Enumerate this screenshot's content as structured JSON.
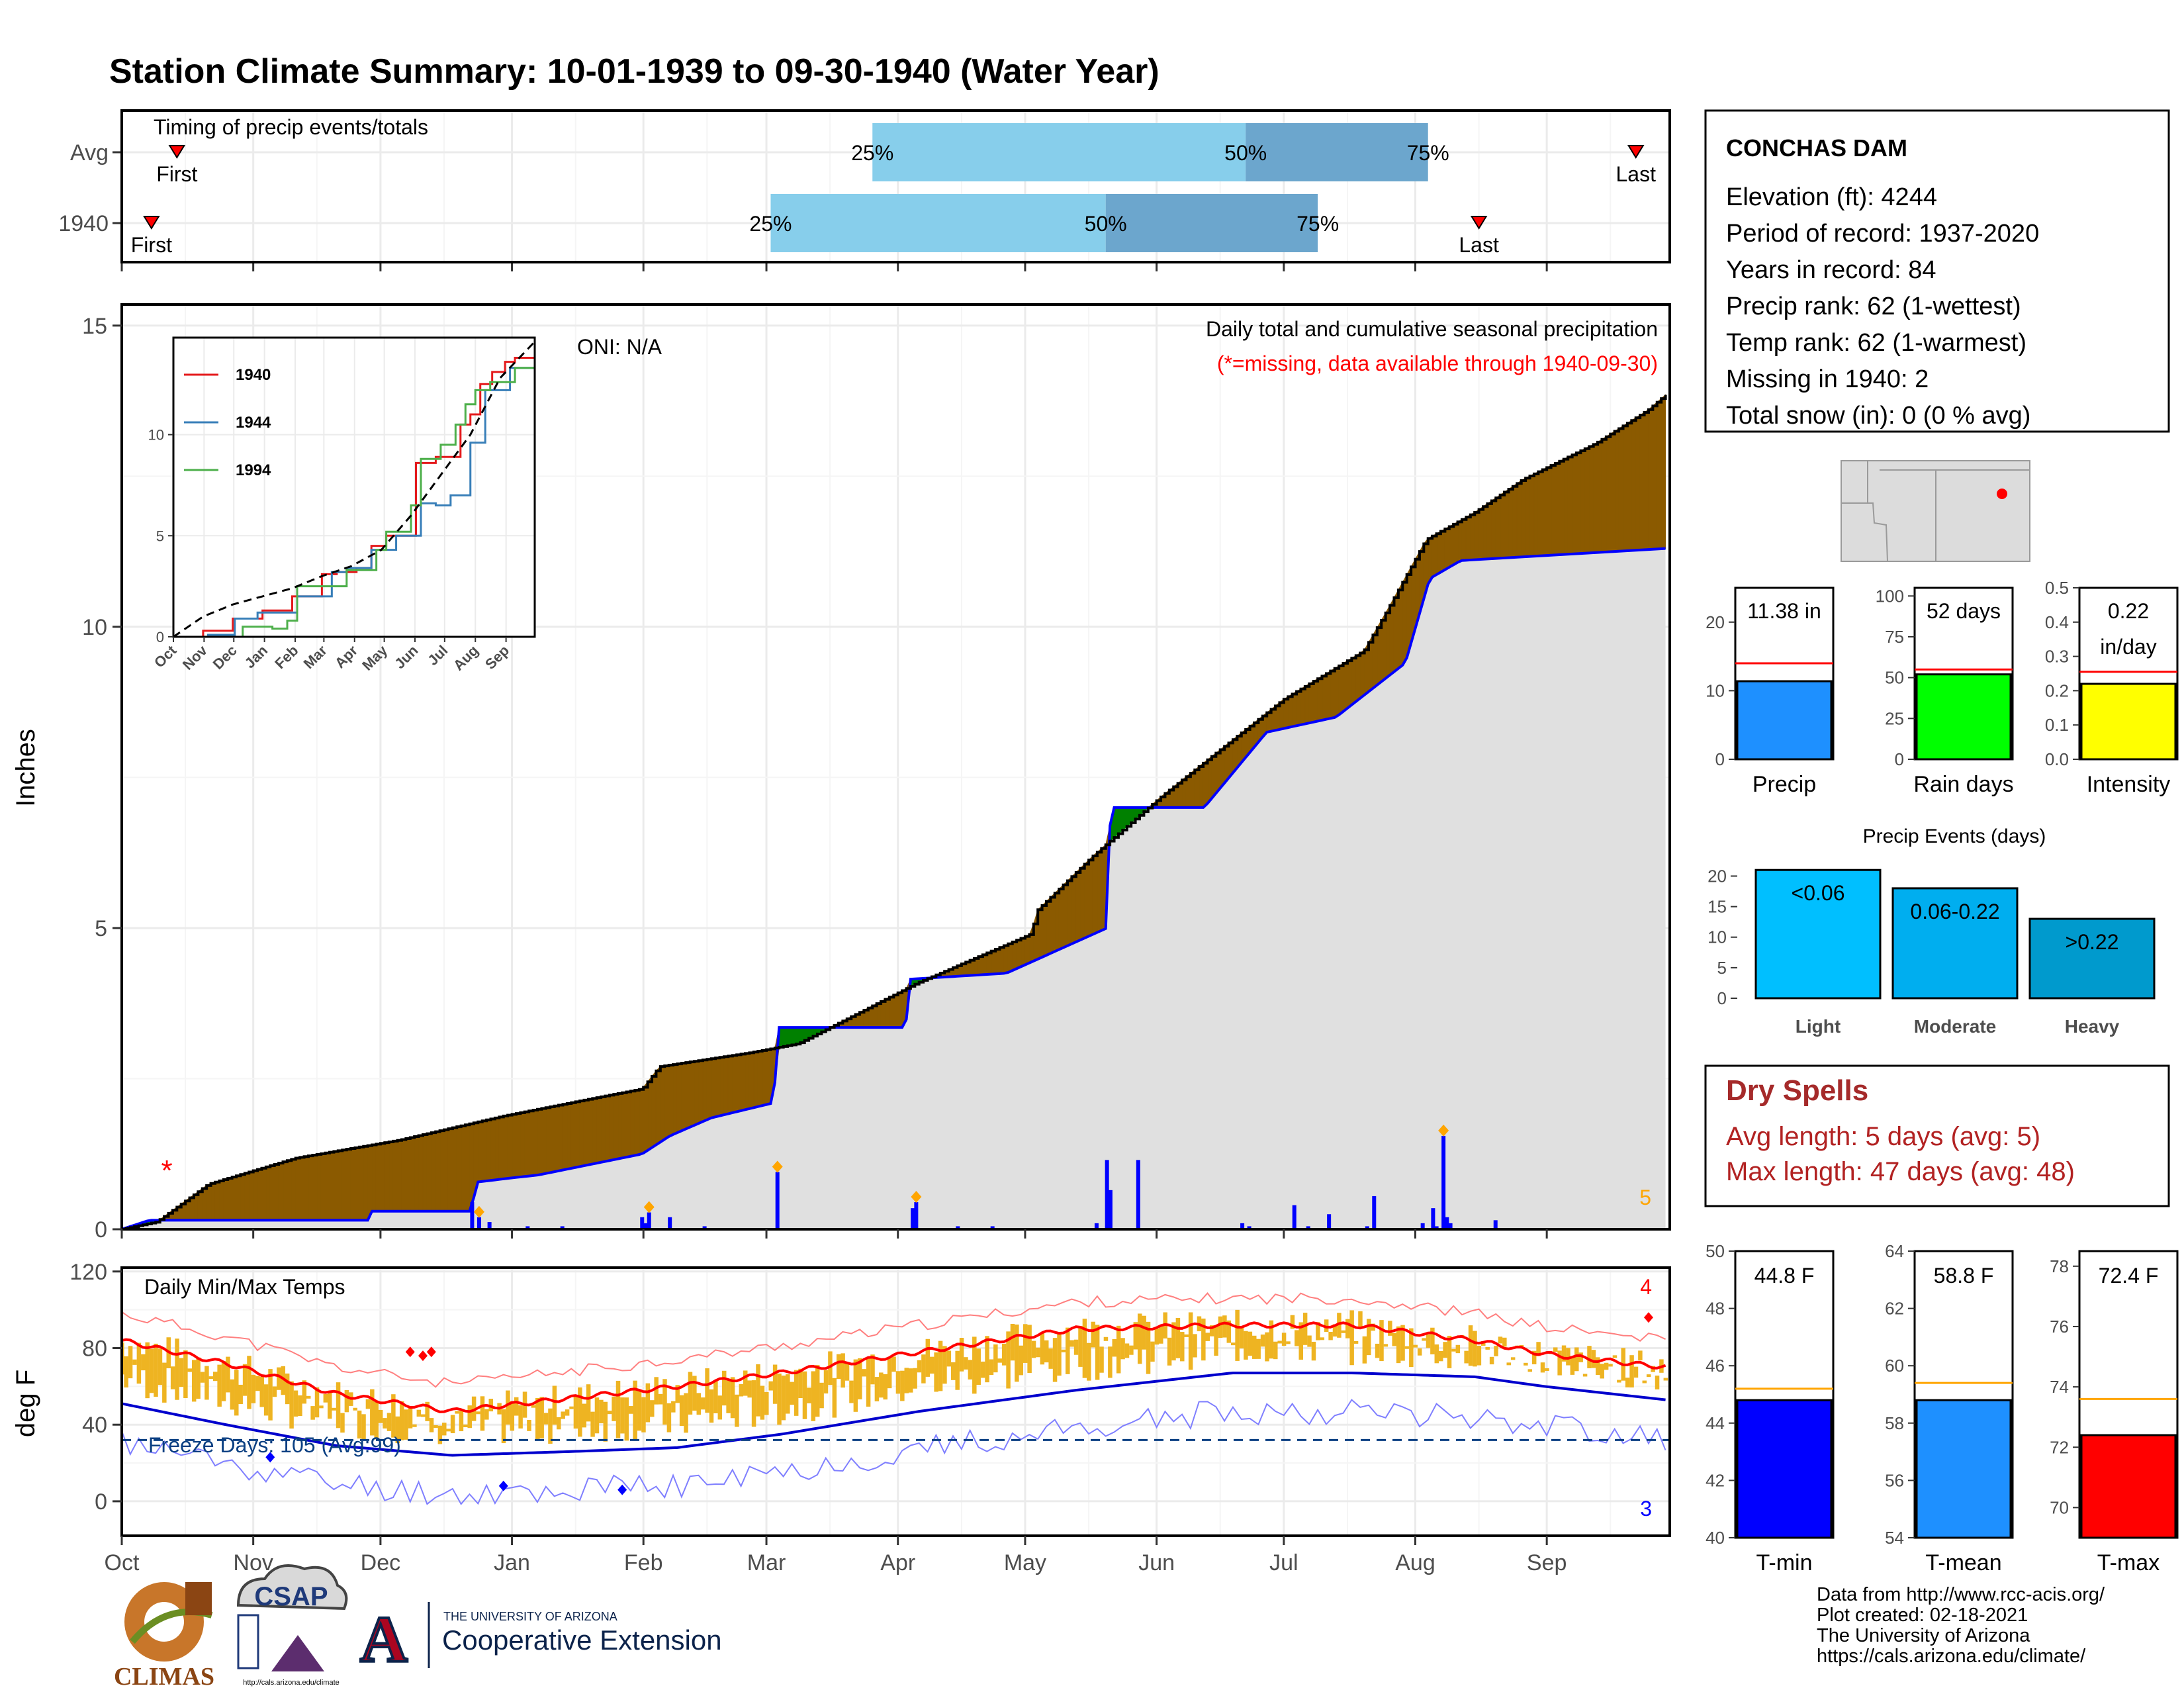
{
  "title": "Station Climate Summary: 10-01-1939 to 09-30-1940 (Water Year)",
  "colors": {
    "title": "#8B2500",
    "brown": "#8B5A00",
    "green": "#008000",
    "gray_fill": "#E0E0E0",
    "blue_line": "#0000FF",
    "bar_light": "#87CEEB",
    "bar_dark": "#6CA6CD",
    "gold": "#EEB422",
    "red": "#FF0000",
    "navy": "#0A3F82"
  },
  "timing": {
    "title": "Timing of precip events/totals",
    "rows": [
      {
        "label": "Avg",
        "first_label": "First",
        "last_label": "Last",
        "first_doy": 13,
        "last_doy": 357,
        "p25_doy": 177,
        "p50_doy": 265,
        "p75_doy": 308,
        "p25": "25%",
        "p50": "50%",
        "p75": "75%"
      },
      {
        "label": "1940",
        "first_label": "First",
        "last_label": "Last",
        "first_doy": 7,
        "last_doy": 320,
        "p25_doy": 153,
        "p50_doy": 232,
        "p75_doy": 282,
        "p25": "25%",
        "p50": "50%",
        "p75": "75%"
      }
    ]
  },
  "precip_panel": {
    "y_label": "Inches",
    "y_ticks": [
      "0",
      "5",
      "10",
      "15"
    ],
    "annotation": "Daily total and cumulative seasonal precipitation",
    "missing_note": "(*=missing, data available through 1940-09-30)",
    "oni": "ONI: N/A",
    "corner_count": "5"
  },
  "inset": {
    "y_ticks": [
      "0",
      "5",
      "10"
    ],
    "x_ticks": [
      "Oct",
      "Nov",
      "Dec",
      "Jan",
      "Feb",
      "Mar",
      "Apr",
      "May",
      "Jun",
      "Jul",
      "Aug",
      "Sep"
    ],
    "legend": [
      {
        "name": "1940",
        "color": "#E41A1C"
      },
      {
        "name": "1944",
        "color": "#377EB8"
      },
      {
        "name": "1994",
        "color": "#4DAF4A"
      }
    ]
  },
  "temp_panel": {
    "y_label": "deg F",
    "title": "Daily Min/Max Temps",
    "y_ticks": [
      "0",
      "40",
      "80",
      "120"
    ],
    "freeze_label": "Freeze Days: 105 (Avg:99)",
    "corner_hi": "4",
    "corner_lo": "3"
  },
  "months": [
    "Oct",
    "Nov",
    "Dec",
    "Jan",
    "Feb",
    "Mar",
    "Apr",
    "May",
    "Jun",
    "Jul",
    "Aug",
    "Sep"
  ],
  "station": {
    "name": "CONCHAS DAM",
    "lines": [
      "Elevation (ft): 4244",
      "Period of record: 1937-2020",
      "Years in record: 84",
      "Precip rank: 62 (1-wettest)",
      "Temp rank: 62 (1-warmest)",
      "Missing in 1940: 2",
      "Total snow (in): 0 (0 % avg)"
    ]
  },
  "mini_bars": [
    {
      "label": "Precip",
      "value_text": "11.38 in",
      "value": 11.38,
      "avg": 14.0,
      "ymax": 25,
      "ticks": [
        "0",
        "10",
        "20"
      ],
      "tick_vals": [
        0,
        10,
        20
      ],
      "color": "#1E90FF"
    },
    {
      "label": "Rain days",
      "value_text": "52 days",
      "value": 52,
      "avg": 55,
      "ymax": 105,
      "ticks": [
        "0",
        "25",
        "50",
        "75",
        "100"
      ],
      "tick_vals": [
        0,
        25,
        50,
        75,
        100
      ],
      "color": "#00FF00"
    },
    {
      "label": "Intensity",
      "value_text": "0.22",
      "value_text2": "in/day",
      "value": 0.22,
      "avg": 0.255,
      "ymax": 0.5,
      "ticks": [
        "0.0",
        "0.1",
        "0.2",
        "0.3",
        "0.4",
        "0.5"
      ],
      "tick_vals": [
        0,
        0.1,
        0.2,
        0.3,
        0.4,
        0.5
      ],
      "color": "#FFFF00"
    }
  ],
  "events": {
    "title": "Precip Events (days)",
    "ticks": [
      "0",
      "5",
      "10",
      "15",
      "20"
    ],
    "bars": [
      {
        "label": "Light",
        "text": "<0.06",
        "value": 21,
        "color": "#00BFFF"
      },
      {
        "label": "Moderate",
        "text": "0.06-0.22",
        "value": 18,
        "color": "#00AEEF"
      },
      {
        "label": "Heavy",
        "text": ">0.22",
        "value": 13,
        "color": "#009ACD"
      }
    ]
  },
  "dry_spells": {
    "title": "Dry Spells",
    "avg": "Avg length: 5 days (avg: 5)",
    "max": "Max length: 47 days (avg: 48)"
  },
  "temp_bars": [
    {
      "label": "T-min",
      "value_text": "44.8 F",
      "value": 44.8,
      "avg": 45.2,
      "ymin": 40,
      "ymax": 50,
      "ticks": [
        "40",
        "42",
        "44",
        "46",
        "48",
        "50"
      ],
      "tick_vals": [
        40,
        42,
        44,
        46,
        48,
        50
      ],
      "color": "#0000FF"
    },
    {
      "label": "T-mean",
      "value_text": "58.8 F",
      "value": 58.8,
      "avg": 59.4,
      "ymin": 54,
      "ymax": 64,
      "ticks": [
        "54",
        "56",
        "58",
        "60",
        "62",
        "64"
      ],
      "tick_vals": [
        54,
        56,
        58,
        60,
        62,
        64
      ],
      "color": "#1E90FF"
    },
    {
      "label": "T-max",
      "value_text": "72.4 F",
      "value": 72.4,
      "avg": 73.6,
      "ymin": 69,
      "ymax": 78.5,
      "ticks": [
        "70",
        "72",
        "74",
        "76",
        "78"
      ],
      "tick_vals": [
        70,
        72,
        74,
        76,
        78
      ],
      "color": "#FF0000"
    }
  ],
  "footer": {
    "lines": [
      "Data from http://www.rcc-acis.org/",
      "Plot created: 02-18-2021",
      "The University of Arizona",
      "https://cals.arizona.edu/climate/"
    ],
    "climas": "CLIMAS",
    "csap": "CSAP",
    "csap_url": "http://cals.arizona.edu/climate",
    "ua_small": "THE UNIVERSITY OF ARIZONA",
    "ua_big": "Cooperative Extension"
  },
  "chart_data": {
    "type": "area",
    "series": [
      {
        "name": "1940",
        "points": [
          [
            0,
            0
          ],
          [
            10,
            0.12
          ],
          [
            25,
            0.75
          ],
          [
            50,
            1.18
          ],
          [
            80,
            1.48
          ],
          [
            110,
            1.88
          ],
          [
            140,
            2.22
          ],
          [
            150,
            2.33
          ],
          [
            155,
            2.7
          ],
          [
            181,
            2.93
          ],
          [
            195,
            3.08
          ],
          [
            229,
            4.08
          ],
          [
            262,
            4.9
          ],
          [
            264,
            5.3
          ],
          [
            280,
            6.2
          ],
          [
            300,
            7.2
          ],
          [
            335,
            8.8
          ],
          [
            358,
            9.6
          ],
          [
            365,
            10.3
          ],
          [
            376,
            11.45
          ],
          [
            390,
            11.9
          ],
          [
            404,
            12.45
          ],
          [
            425,
            13.05
          ],
          [
            440,
            13.6
          ],
          [
            445,
            13.85
          ]
        ]
      },
      {
        "name": "Avg",
        "points": [
          [
            0,
            0
          ],
          [
            8,
            0.15
          ],
          [
            71,
            0.15
          ],
          [
            72,
            0.3
          ],
          [
            101,
            0.3
          ],
          [
            102,
            0.78
          ],
          [
            112,
            0.85
          ],
          [
            120,
            0.9
          ],
          [
            150,
            1.25
          ],
          [
            158,
            1.55
          ],
          [
            170,
            1.85
          ],
          [
            188,
            2.1
          ],
          [
            189,
            3.35
          ],
          [
            226,
            3.35
          ],
          [
            227,
            4.15
          ],
          [
            255,
            4.25
          ],
          [
            284,
            5.0
          ],
          [
            285,
            7.0
          ],
          [
            312,
            7.0
          ],
          [
            330,
            8.25
          ],
          [
            350,
            8.5
          ],
          [
            370,
            9.4
          ],
          [
            377,
            10.8
          ],
          [
            386,
            11.1
          ],
          [
            445,
            11.3
          ]
        ]
      }
    ],
    "daily_precip_days": [
      [
        101,
        0.45
      ],
      [
        103,
        0.2
      ],
      [
        106,
        0.12
      ],
      [
        117,
        0.05
      ],
      [
        127,
        0.05
      ],
      [
        150,
        0.2
      ],
      [
        151,
        0.1
      ],
      [
        152,
        0.28
      ],
      [
        158,
        0.2
      ],
      [
        168,
        0.05
      ],
      [
        189,
        0.95
      ],
      [
        228,
        0.35
      ],
      [
        229,
        0.45
      ],
      [
        241,
        0.05
      ],
      [
        251,
        0.05
      ],
      [
        281,
        0.1
      ],
      [
        284,
        1.15
      ],
      [
        285,
        0.65
      ],
      [
        293,
        1.15
      ],
      [
        323,
        0.1
      ],
      [
        325,
        0.05
      ],
      [
        338,
        0.4
      ],
      [
        342,
        0.05
      ],
      [
        348,
        0.25
      ],
      [
        359,
        0.05
      ],
      [
        361,
        0.55
      ],
      [
        375,
        0.1
      ],
      [
        378,
        0.35
      ],
      [
        379,
        0.05
      ],
      [
        381,
        1.55
      ],
      [
        382,
        0.2
      ],
      [
        383,
        0.1
      ],
      [
        396,
        0.15
      ]
    ],
    "temps": {
      "avg_max": [
        [
          0,
          84
        ],
        [
          30,
          72
        ],
        [
          62,
          56
        ],
        [
          95,
          47
        ],
        [
          130,
          54
        ],
        [
          160,
          60
        ],
        [
          190,
          67
        ],
        [
          230,
          78
        ],
        [
          275,
          90
        ],
        [
          320,
          92
        ],
        [
          355,
          92
        ],
        [
          390,
          84
        ],
        [
          410,
          77
        ],
        [
          445,
          70
        ]
      ],
      "avg_min": [
        [
          0,
          51
        ],
        [
          30,
          40
        ],
        [
          62,
          29
        ],
        [
          95,
          24
        ],
        [
          130,
          26
        ],
        [
          160,
          28
        ],
        [
          190,
          35
        ],
        [
          230,
          47
        ],
        [
          275,
          58
        ],
        [
          320,
          67
        ],
        [
          355,
          67
        ],
        [
          390,
          65
        ],
        [
          410,
          60
        ],
        [
          445,
          53
        ]
      ]
    },
    "xlabel": "",
    "ylabel": "Inches",
    "ylim": [
      0,
      15
    ]
  }
}
